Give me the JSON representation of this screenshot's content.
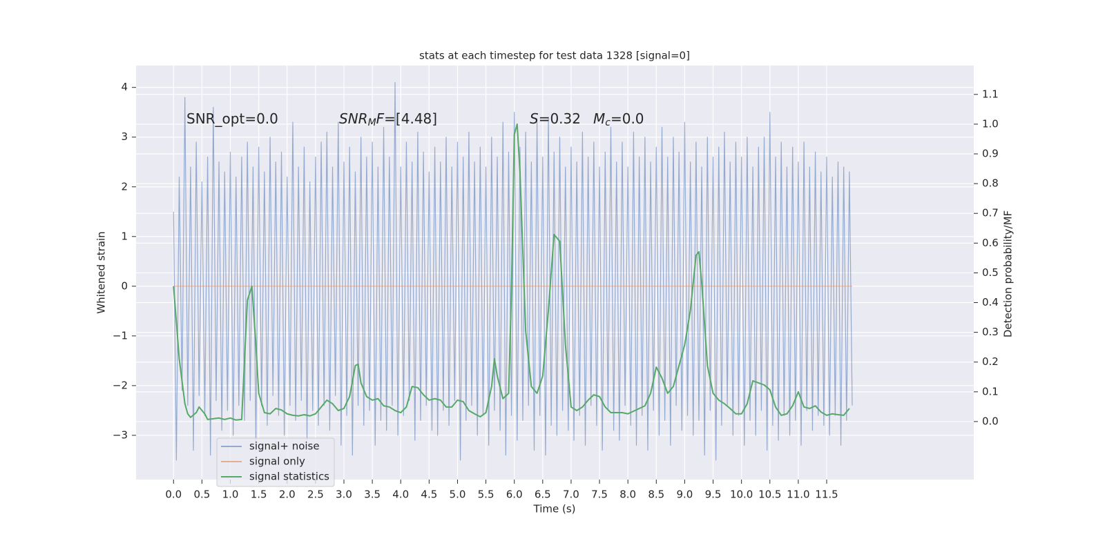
{
  "chart_data": {
    "type": "line",
    "title": "stats at each timestep for test data 1328 [signal=0]",
    "xlabel": "Time (s)",
    "ylabel": "Whitened strain",
    "y2label": "Detection probability/MF",
    "annotations": [
      [
        {
          "text": "SNR_opt=0.0"
        }
      ],
      [
        {
          "text": "SNR",
          "italic": true
        },
        {
          "text": "M",
          "italic": true,
          "sub": true
        },
        {
          "text": "F",
          "italic": true
        },
        {
          "text": "=[4.48]"
        }
      ],
      [
        {
          "text": "S",
          "italic": true
        },
        {
          "text": "=0.32"
        }
      ],
      [
        {
          "text": "M",
          "italic": true
        },
        {
          "text": "c",
          "italic": true,
          "sub": true
        },
        {
          "text": "=0.0"
        }
      ]
    ],
    "xlim": [
      -0.66,
      14.09
    ],
    "ylim": [
      -3.89,
      4.44
    ],
    "y2lim": [
      -0.195,
      1.197
    ],
    "xticks": [
      {
        "value": 0,
        "label": "0.0"
      },
      0.5,
      {
        "value": 1,
        "label": "1.0"
      },
      1.5,
      {
        "value": 2,
        "label": "2.0"
      },
      2.5,
      {
        "value": 3,
        "label": "3.0"
      },
      3.5,
      {
        "value": 4,
        "label": "4.0"
      },
      4.5,
      {
        "value": 5,
        "label": "5.0"
      },
      5.5,
      {
        "value": 6,
        "label": "6.0"
      },
      6.5,
      {
        "value": 7,
        "label": "7.0"
      },
      7.5,
      {
        "value": 8,
        "label": "8.0"
      },
      8.5,
      {
        "value": 9,
        "label": "9.0"
      },
      9.5,
      {
        "value": 10,
        "label": "10.0"
      },
      10.5,
      {
        "value": 11,
        "label": "11.0"
      },
      11.5
    ],
    "yticks": [
      {
        "value": -3,
        "label": "−3"
      },
      {
        "value": -2,
        "label": "−2"
      },
      {
        "value": -1,
        "label": "−1"
      },
      0,
      1,
      2,
      3,
      4
    ],
    "y2ticks": [
      {
        "value": 0,
        "label": "0.0"
      },
      0.1,
      0.2,
      0.3,
      0.4,
      0.5,
      0.6,
      0.7,
      0.8,
      0.9,
      {
        "value": 1,
        "label": "1.0"
      },
      1.1
    ],
    "grid": true,
    "background": "#eaeaf2",
    "legend": "lower left",
    "series": [
      {
        "name": "signal+ noise",
        "color": "#4c72b0",
        "alpha": 0.55,
        "x": [
          0,
          0.05,
          0.1,
          0.15,
          0.2,
          0.25,
          0.3,
          0.35,
          0.4,
          0.45,
          0.5,
          0.55,
          0.6,
          0.65,
          0.7,
          0.75,
          0.8,
          0.85,
          0.9,
          0.95,
          1,
          1.05,
          1.1,
          1.15,
          1.2,
          1.25,
          1.3,
          1.35,
          1.4,
          1.45,
          1.5,
          1.55,
          1.6,
          1.65,
          1.7,
          1.75,
          1.8,
          1.85,
          1.9,
          1.95,
          2,
          2.05,
          2.1,
          2.15,
          2.2,
          2.25,
          2.3,
          2.35,
          2.4,
          2.45,
          2.5,
          2.55,
          2.6,
          2.65,
          2.7,
          2.75,
          2.8,
          2.85,
          2.9,
          2.95,
          3,
          3.05,
          3.1,
          3.15,
          3.2,
          3.25,
          3.3,
          3.35,
          3.4,
          3.45,
          3.5,
          3.55,
          3.6,
          3.65,
          3.7,
          3.75,
          3.8,
          3.85,
          3.9,
          3.95,
          4,
          4.05,
          4.1,
          4.15,
          4.2,
          4.25,
          4.3,
          4.35,
          4.4,
          4.45,
          4.5,
          4.55,
          4.6,
          4.65,
          4.7,
          4.75,
          4.8,
          4.85,
          4.9,
          4.95,
          5,
          5.05,
          5.1,
          5.15,
          5.2,
          5.25,
          5.3,
          5.35,
          5.4,
          5.45,
          5.5,
          5.55,
          5.6,
          5.65,
          5.7,
          5.75,
          5.8,
          5.85,
          5.9,
          5.95,
          6,
          6.05,
          6.1,
          6.15,
          6.2,
          6.25,
          6.3,
          6.35,
          6.4,
          6.45,
          6.5,
          6.55,
          6.6,
          6.65,
          6.7,
          6.75,
          6.8,
          6.85,
          6.9,
          6.95,
          7,
          7.05,
          7.1,
          7.15,
          7.2,
          7.25,
          7.3,
          7.35,
          7.4,
          7.45,
          7.5,
          7.55,
          7.6,
          7.65,
          7.7,
          7.75,
          7.8,
          7.85,
          7.9,
          7.95,
          8,
          8.05,
          8.1,
          8.15,
          8.2,
          8.25,
          8.3,
          8.35,
          8.4,
          8.45,
          8.5,
          8.55,
          8.6,
          8.65,
          8.7,
          8.75,
          8.8,
          8.85,
          8.9,
          8.95,
          9,
          9.05,
          9.1,
          9.15,
          9.2,
          9.25,
          9.3,
          9.35,
          9.4,
          9.45,
          9.5,
          9.55,
          9.6,
          9.65,
          9.7,
          9.75,
          9.8,
          9.85,
          9.9,
          9.95,
          10,
          10.05,
          10.1,
          10.15,
          10.2,
          10.25,
          10.3,
          10.35,
          10.4,
          10.45,
          10.5,
          10.55,
          10.6,
          10.65,
          10.7,
          10.75,
          10.8,
          10.85,
          10.9,
          10.95,
          11,
          11.05,
          11.1,
          11.15,
          11.2,
          11.25,
          11.3,
          11.35,
          11.4,
          11.45,
          11.5,
          11.55,
          11.6,
          11.65,
          11.7,
          11.75,
          11.8,
          11.85,
          11.9,
          11.95
        ],
        "values": [
          1.5,
          -3.5,
          2.2,
          -2.1,
          3.8,
          -2.4,
          2.4,
          -3.3,
          2.9,
          -2.2,
          2.1,
          -2.6,
          2.6,
          -3.4,
          3.6,
          -2.3,
          2.5,
          -2.9,
          2.3,
          -2.5,
          2.7,
          -3.0,
          2.2,
          -2.4,
          2.6,
          -2.7,
          2.9,
          -2.3,
          2.4,
          -3.2,
          2.8,
          -2.4,
          2.3,
          -2.8,
          3.0,
          -2.2,
          2.5,
          -2.6,
          2.7,
          -3.0,
          2.2,
          -2.4,
          3.3,
          -2.7,
          2.4,
          -2.3,
          2.8,
          -3.1,
          2.1,
          -2.5,
          2.6,
          -2.8,
          2.9,
          -2.4,
          3.1,
          -2.9,
          2.4,
          -2.2,
          3.3,
          -3.2,
          2.5,
          -2.6,
          2.8,
          -3.4,
          2.3,
          -2.4,
          3.0,
          -2.8,
          2.6,
          -2.5,
          2.9,
          -3.2,
          2.4,
          -2.7,
          3.2,
          -2.9,
          2.6,
          -2.4,
          4.1,
          -3.0,
          2.4,
          -2.6,
          2.9,
          -2.3,
          2.5,
          -3.1,
          3.1,
          -2.7,
          2.7,
          -2.4,
          2.3,
          -2.9,
          2.8,
          -3.0,
          2.5,
          -2.5,
          3.0,
          -2.8,
          2.4,
          -2.3,
          2.9,
          -3.5,
          2.6,
          -2.7,
          3.1,
          -2.4,
          2.5,
          -3.0,
          2.8,
          -2.6,
          2.4,
          -3.2,
          3.0,
          -2.5,
          2.6,
          -2.9,
          3.3,
          -3.4,
          2.7,
          -2.6,
          3.5,
          -3.1,
          2.8,
          -2.7,
          3.1,
          -2.4,
          2.5,
          -3.3,
          3.3,
          -2.6,
          2.6,
          -3.4,
          3.4,
          -2.8,
          2.7,
          -3.0,
          3.0,
          -2.5,
          2.4,
          -2.9,
          2.8,
          -3.1,
          2.5,
          -2.6,
          3.1,
          -3.2,
          2.6,
          -2.4,
          2.9,
          -2.8,
          2.4,
          -3.3,
          2.7,
          -2.5,
          3.2,
          -2.9,
          2.5,
          -3.1,
          2.9,
          -2.4,
          2.4,
          -2.8,
          3.1,
          -3.2,
          2.6,
          -2.6,
          3.0,
          -3.3,
          2.5,
          -2.5,
          2.8,
          -3.0,
          3.2,
          -2.7,
          2.6,
          -3.2,
          3.0,
          -2.4,
          2.7,
          -2.9,
          3.3,
          -2.6,
          2.5,
          -3.0,
          2.9,
          -2.7,
          2.4,
          -3.4,
          3.0,
          -2.5,
          2.6,
          -3.5,
          2.8,
          -2.8,
          3.1,
          -2.4,
          2.5,
          -3.0,
          2.9,
          -2.6,
          2.6,
          -3.2,
          3.0,
          -2.7,
          2.4,
          -3.0,
          2.8,
          -2.5,
          3.0,
          -3.3,
          3.5,
          -2.8,
          2.6,
          -3.1,
          2.9,
          -2.6,
          2.4,
          -3.0,
          2.8,
          -2.7,
          2.5,
          -3.2,
          2.9,
          -2.5,
          2.4,
          -2.9,
          2.7,
          -2.6,
          2.3,
          -2.8,
          2.6,
          -3.0,
          2.2,
          -2.6,
          2.5,
          -3.2,
          2.4,
          -2.7,
          2.3,
          -2.4
        ]
      },
      {
        "name": "signal only",
        "color": "#dd8452",
        "alpha": 0.6,
        "x": [
          0,
          11.95
        ],
        "values": [
          0,
          0
        ]
      },
      {
        "name": "signal statistics",
        "color": "#55a868",
        "alpha": 1,
        "axis": "y2",
        "x": [
          0,
          0.1,
          0.2,
          0.25,
          0.3,
          0.4,
          0.45,
          0.55,
          0.6,
          0.8,
          0.9,
          1,
          1.1,
          1.2,
          1.3,
          1.38,
          1.45,
          1.5,
          1.6,
          1.7,
          1.8,
          1.9,
          2,
          2.1,
          2.2,
          2.3,
          2.4,
          2.5,
          2.6,
          2.7,
          2.8,
          2.9,
          3,
          3.1,
          3.2,
          3.25,
          3.3,
          3.4,
          3.5,
          3.6,
          3.7,
          3.8,
          3.9,
          4,
          4.1,
          4.2,
          4.3,
          4.4,
          4.5,
          4.6,
          4.7,
          4.8,
          4.9,
          5,
          5.1,
          5.2,
          5.3,
          5.4,
          5.5,
          5.6,
          5.65,
          5.7,
          5.8,
          5.9,
          5.95,
          6,
          6.05,
          6.1,
          6.2,
          6.3,
          6.4,
          6.5,
          6.6,
          6.7,
          6.8,
          6.9,
          7,
          7.1,
          7.2,
          7.3,
          7.4,
          7.5,
          7.6,
          7.7,
          7.8,
          7.9,
          8,
          8.1,
          8.2,
          8.3,
          8.4,
          8.5,
          8.6,
          8.7,
          8.8,
          8.9,
          9,
          9.1,
          9.2,
          9.25,
          9.3,
          9.4,
          9.5,
          9.6,
          9.7,
          9.8,
          9.9,
          10,
          10.1,
          10.2,
          10.3,
          10.4,
          10.5,
          10.6,
          10.7,
          10.8,
          10.9,
          11,
          11.1,
          11.2,
          11.3,
          11.4,
          11.5,
          11.6,
          11.7,
          11.8,
          11.9
        ],
        "values": [
          0.455,
          0.211,
          0.06,
          0.026,
          0.014,
          0.03,
          0.049,
          0.026,
          0.007,
          0.012,
          0.007,
          0.012,
          0.005,
          0.007,
          0.408,
          0.455,
          0.258,
          0.095,
          0.03,
          0.026,
          0.044,
          0.039,
          0.026,
          0.021,
          0.019,
          0.023,
          0.019,
          0.026,
          0.049,
          0.072,
          0.06,
          0.037,
          0.044,
          0.084,
          0.188,
          0.193,
          0.13,
          0.084,
          0.072,
          0.077,
          0.053,
          0.049,
          0.037,
          0.03,
          0.049,
          0.118,
          0.114,
          0.09,
          0.072,
          0.077,
          0.072,
          0.049,
          0.049,
          0.072,
          0.067,
          0.037,
          0.026,
          0.016,
          0.03,
          0.118,
          0.211,
          0.153,
          0.077,
          0.095,
          0.443,
          0.965,
          1.0,
          0.838,
          0.304,
          0.118,
          0.095,
          0.153,
          0.374,
          0.629,
          0.606,
          0.258,
          0.049,
          0.037,
          0.049,
          0.072,
          0.09,
          0.084,
          0.049,
          0.03,
          0.03,
          0.03,
          0.026,
          0.035,
          0.044,
          0.053,
          0.095,
          0.183,
          0.146,
          0.095,
          0.118,
          0.188,
          0.258,
          0.374,
          0.559,
          0.571,
          0.466,
          0.188,
          0.095,
          0.072,
          0.06,
          0.044,
          0.026,
          0.026,
          0.06,
          0.137,
          0.13,
          0.123,
          0.107,
          0.049,
          0.021,
          0.026,
          0.053,
          0.1,
          0.049,
          0.044,
          0.053,
          0.032,
          0.021,
          0.026,
          0.023,
          0.021,
          0.044
        ]
      }
    ]
  }
}
